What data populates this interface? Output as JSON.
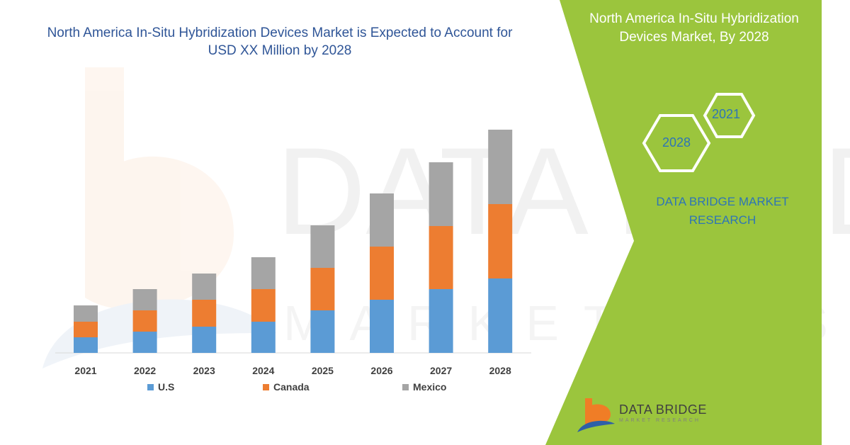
{
  "header": {
    "title": "North America In-Situ Hybridization Devices Market is Expected to Account for USD XX Million by 2028"
  },
  "panel": {
    "title": "North America In-Situ Hybridization Devices Market, By 2028",
    "hex_labels": [
      "2021",
      "2028"
    ],
    "brand": "DATA BRIDGE MARKET RESEARCH",
    "logo_text": "DATA BRIDGE",
    "logo_sub": "MARKET RESEARCH",
    "accent_color": "#9bc53d",
    "brand_color": "#2e75b6",
    "logo_colors": [
      "#f07d26",
      "#2e5fa7"
    ]
  },
  "watermark": {
    "line1": "DATA BRIDGE",
    "line2": "MARKET RESEARCH"
  },
  "chart_data": {
    "type": "bar",
    "stacked": true,
    "title": "North America In-Situ Hybridization Devices Market is Expected to Account for USD XX Million by 2028",
    "categories": [
      "2021",
      "2022",
      "2023",
      "2024",
      "2025",
      "2026",
      "2027",
      "2028"
    ],
    "series": [
      {
        "name": "U.S",
        "color": "#5b9bd5",
        "values": [
          22,
          30,
          37,
          44,
          60,
          75,
          90,
          105
        ]
      },
      {
        "name": "Canada",
        "color": "#ed7d31",
        "values": [
          22,
          30,
          38,
          46,
          60,
          75,
          89,
          105
        ]
      },
      {
        "name": "Mexico",
        "color": "#a5a5a5",
        "values": [
          23,
          30,
          37,
          45,
          60,
          75,
          90,
          105
        ]
      }
    ],
    "legend_position": "bottom",
    "grid": false,
    "y_axis_visible": false,
    "ylim": [
      0,
      315
    ]
  }
}
